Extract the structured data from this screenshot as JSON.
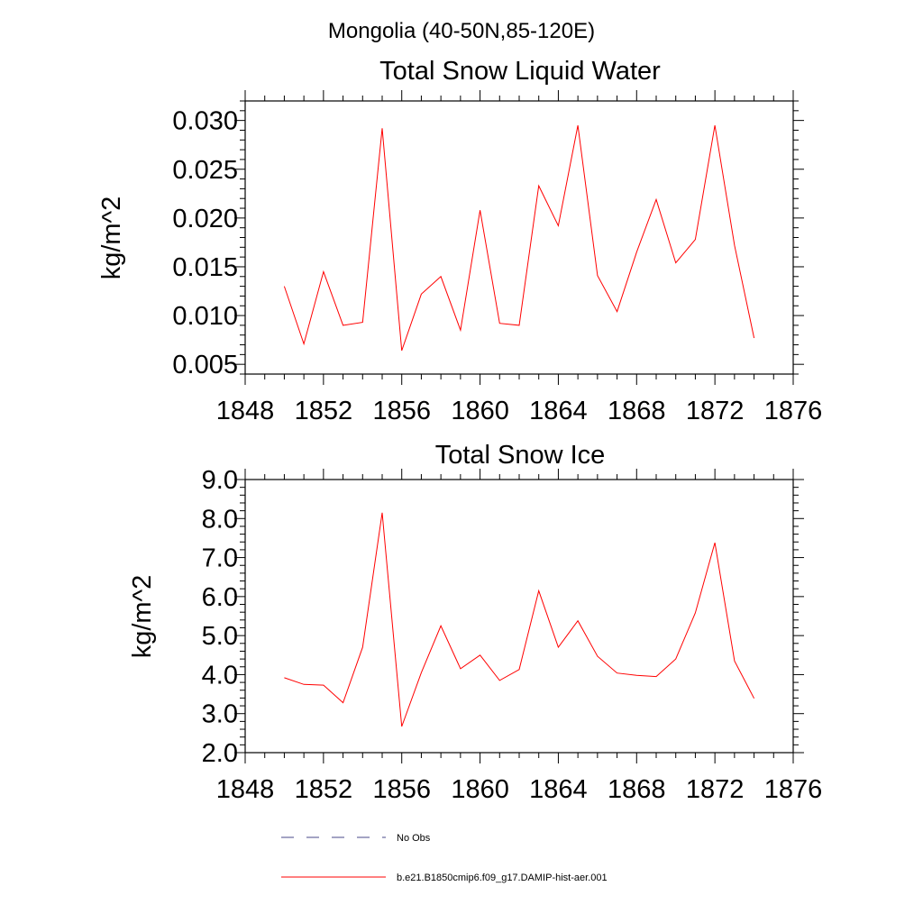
{
  "figure": {
    "title": "Mongolia (40-50N,85-120E)"
  },
  "legend": [
    {
      "label": "No Obs",
      "color": "#4a4a8a",
      "dash": true
    },
    {
      "label": "b.e21.B1850cmip6.f09_g17.DAMIP-hist-aer.001",
      "color": "#ff0000",
      "dash": false
    }
  ],
  "chart_data": [
    {
      "type": "line",
      "title": "Total Snow Liquid Water",
      "xlabel": "",
      "ylabel": "kg/m^2",
      "xlim": [
        1848,
        1876
      ],
      "ylim": [
        0.004,
        0.032
      ],
      "xticks": [
        1848,
        1852,
        1856,
        1860,
        1864,
        1868,
        1872,
        1876
      ],
      "xtick_labels": [
        "1848",
        "1852",
        "1856",
        "1860",
        "1864",
        "1868",
        "1872",
        "1876"
      ],
      "yticks": [
        0.005,
        0.01,
        0.015,
        0.02,
        0.025,
        0.03
      ],
      "ytick_labels": [
        "0.005",
        "0.010",
        "0.015",
        "0.020",
        "0.025",
        "0.030"
      ],
      "grid": false,
      "series": [
        {
          "name": "b.e21.B1850cmip6.f09_g17.DAMIP-hist-aer.001",
          "color": "#ff0000",
          "x": [
            1850,
            1851,
            1852,
            1853,
            1854,
            1855,
            1856,
            1857,
            1858,
            1859,
            1860,
            1861,
            1862,
            1863,
            1864,
            1865,
            1866,
            1867,
            1868,
            1869,
            1870,
            1871,
            1872,
            1873,
            1874
          ],
          "y": [
            0.013,
            0.0071,
            0.0145,
            0.009,
            0.0093,
            0.0292,
            0.0064,
            0.0122,
            0.014,
            0.0085,
            0.0208,
            0.0092,
            0.009,
            0.0233,
            0.0192,
            0.0295,
            0.0141,
            0.0104,
            0.0165,
            0.0219,
            0.0154,
            0.0178,
            0.0295,
            0.0172,
            0.0077
          ]
        }
      ]
    },
    {
      "type": "line",
      "title": "Total Snow Ice",
      "xlabel": "",
      "ylabel": "kg/m^2",
      "xlim": [
        1848,
        1876
      ],
      "ylim": [
        2.0,
        9.0
      ],
      "xticks": [
        1848,
        1852,
        1856,
        1860,
        1864,
        1868,
        1872,
        1876
      ],
      "xtick_labels": [
        "1848",
        "1852",
        "1856",
        "1860",
        "1864",
        "1868",
        "1872",
        "1876"
      ],
      "yticks": [
        2.0,
        3.0,
        4.0,
        5.0,
        6.0,
        7.0,
        8.0,
        9.0
      ],
      "ytick_labels": [
        "2.0",
        "3.0",
        "4.0",
        "5.0",
        "6.0",
        "7.0",
        "8.0",
        "9.0"
      ],
      "grid": false,
      "series": [
        {
          "name": "b.e21.B1850cmip6.f09_g17.DAMIP-hist-aer.001",
          "color": "#ff0000",
          "x": [
            1850,
            1851,
            1852,
            1853,
            1854,
            1855,
            1856,
            1857,
            1858,
            1859,
            1860,
            1861,
            1862,
            1863,
            1864,
            1865,
            1866,
            1867,
            1868,
            1869,
            1870,
            1871,
            1872,
            1873,
            1874
          ],
          "y": [
            3.92,
            3.75,
            3.73,
            3.28,
            4.7,
            8.15,
            2.67,
            4.05,
            5.25,
            4.15,
            4.5,
            3.85,
            4.13,
            6.15,
            4.7,
            5.38,
            4.47,
            4.04,
            3.98,
            3.95,
            4.4,
            5.58,
            7.38,
            4.35,
            3.39
          ]
        }
      ]
    }
  ]
}
